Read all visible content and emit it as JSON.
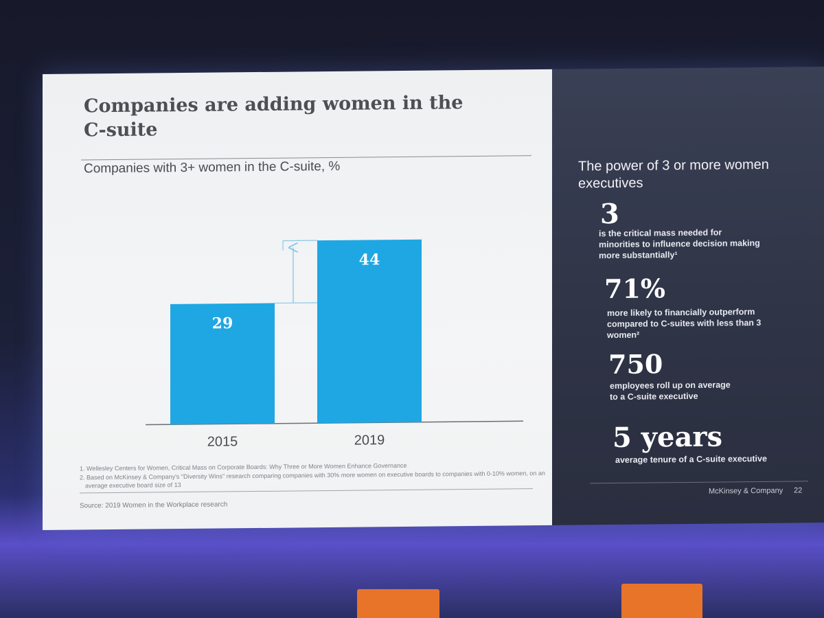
{
  "slide": {
    "title_line1": "Companies are adding women in the",
    "title_line2": "C-suite",
    "chart_subtitle": "Companies with 3+ women in the C-suite, %",
    "footnotes": [
      "1. Wellesley Centers for Women, Critical Mass on Corporate Boards: Why Three or More Women Enhance Governance",
      "2. Based on McKinsey & Company's \"Diversity Wins\" research comparing companies with 30% more women on executive boards to companies with 0-10% women, on an",
      "average executive board size of 13"
    ],
    "source": "Source: 2019 Women in the Workplace research"
  },
  "chart_data": {
    "type": "bar",
    "title": "Companies with 3+ women in the C-suite, %",
    "categories": [
      "2015",
      "2019"
    ],
    "values": [
      29,
      44
    ],
    "xlabel": "",
    "ylabel": "%",
    "ylim": [
      0,
      50
    ],
    "grid": false,
    "annotation": "arrow indicating increase from 29 to 44",
    "bar_color": "#1fa7e3"
  },
  "side_panel": {
    "heading": "The power of 3 or more women executives",
    "stats": [
      {
        "big": "3",
        "desc_lines": [
          "is the critical mass needed for",
          "minorities to influence decision making",
          "more substantially¹"
        ]
      },
      {
        "big": "71%",
        "desc_lines": [
          "more likely to financially outperform",
          "compared to C-suites with less than 3",
          "women²"
        ]
      },
      {
        "big": "750",
        "desc_lines": [
          "employees roll up on average",
          "to a C-suite executive"
        ]
      },
      {
        "big": "5 years",
        "desc_lines": [
          "average tenure of a C-suite executive"
        ]
      }
    ],
    "brand": "McKinsey & Company",
    "page_number": "22"
  },
  "colors": {
    "accent": "#1fa7e3",
    "dark_panel": "#2f3446",
    "title_text": "#4e4e53"
  }
}
